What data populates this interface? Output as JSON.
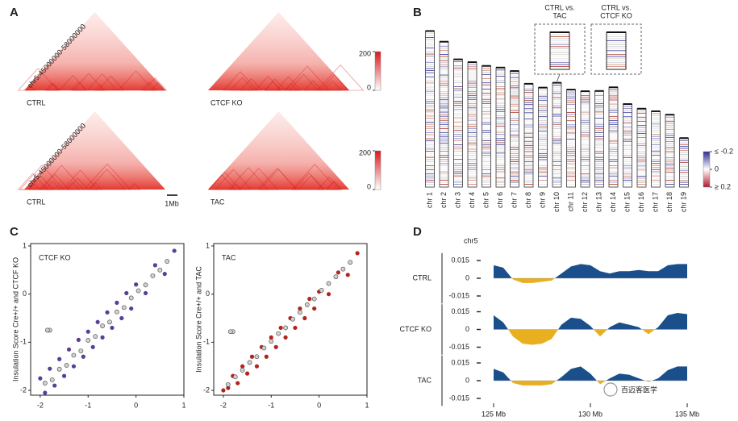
{
  "chart_data": [
    {
      "type": "heatmap",
      "panel": "A",
      "color": "#d7191c",
      "maps": [
        {
          "label": "CTRL",
          "region": "chr5:45000000-58000000"
        },
        {
          "label": "CTCF KO"
        },
        {
          "label": "CTRL",
          "region": "chr5:45000000-58000000"
        },
        {
          "label": "TAC"
        }
      ],
      "colorbars": [
        {
          "ylim": [
            0,
            200
          ],
          "yticks": [
            0,
            200
          ]
        },
        {
          "ylim": [
            0,
            200
          ],
          "yticks": [
            0,
            200
          ]
        }
      ],
      "scale_bar": "1Mb"
    },
    {
      "type": "ideogram",
      "panel": "B",
      "categories": [
        "chr 1",
        "chr 2",
        "chr 3",
        "chr 4",
        "chr 5",
        "chr 6",
        "chr 7",
        "chr 8",
        "chr 9",
        "chr 10",
        "chr 11",
        "chr 12",
        "chr 13",
        "chr 14",
        "chr 15",
        "chr 16",
        "chr 17",
        "chr 18",
        "chr 19"
      ],
      "values": [
        195.5,
        182.1,
        160,
        156.5,
        151.8,
        149.7,
        145.4,
        129.4,
        124.6,
        130.7,
        122.1,
        120.1,
        120.4,
        125,
        104,
        98.2,
        95,
        90.7,
        61.4
      ],
      "insets": [
        {
          "lines": [
            "CTRL vs.",
            "TAC"
          ]
        },
        {
          "lines": [
            "CTRL vs.",
            "CTCF KO"
          ]
        }
      ],
      "colorbar": {
        "ylim": [
          -0.2,
          0.2
        ],
        "yticks": [
          {
            "value": -0.2,
            "label": "≤ -0.2"
          },
          0,
          {
            "value": 0.2,
            "label": "≥ 0.2"
          }
        ],
        "colors": [
          "#2c2c8c",
          "#ffffff",
          "#b2182b"
        ]
      }
    },
    {
      "type": "scatter",
      "panel": "C",
      "label": "CTCF KO",
      "ylabel": "Insulation Score Cre+/+ and CTCF KO",
      "xlim": [
        -2.2,
        1
      ],
      "xticks": [
        -2,
        -1,
        0,
        1
      ],
      "ylim": [
        -2.1,
        1.05
      ],
      "yticks": [
        -2,
        -1,
        0,
        1
      ],
      "series": [
        {
          "color": "#5a3d99",
          "x": [
            -2.0,
            -1.9,
            -1.8,
            -1.7,
            -1.6,
            -1.5,
            -1.4,
            -1.3,
            -1.2,
            -1.1,
            -1.0,
            -0.9,
            -0.8,
            -0.7,
            -0.6,
            -0.5,
            -0.4,
            -0.3,
            -0.2,
            -0.1,
            0,
            0.2,
            0.4,
            0.6,
            0.8
          ],
          "values": [
            -1.75,
            -2.05,
            -1.55,
            -1.9,
            -1.35,
            -1.7,
            -1.15,
            -1.5,
            -0.95,
            -1.3,
            -0.78,
            -1.1,
            -0.58,
            -0.9,
            -0.38,
            -0.7,
            -0.18,
            -0.5,
            0.02,
            -0.3,
            0.2,
            0.02,
            0.6,
            0.42,
            0.9
          ]
        },
        {
          "color": "#d0d0d0",
          "x": [
            -1.9,
            -1.75,
            -1.6,
            -1.45,
            -1.3,
            -1.15,
            -1.0,
            -0.85,
            -0.7,
            -0.55,
            -0.4,
            -0.25,
            -0.1,
            0.05,
            0.2,
            0.35,
            0.5,
            0.65,
            -1.8,
            -1.85
          ],
          "values": [
            -1.85,
            -1.78,
            -1.56,
            -1.48,
            -1.27,
            -1.18,
            -0.96,
            -0.88,
            -0.66,
            -0.58,
            -0.37,
            -0.28,
            -0.08,
            0.07,
            0.19,
            0.38,
            0.5,
            0.68,
            -0.75,
            -0.75
          ]
        }
      ]
    },
    {
      "type": "scatter",
      "label": "TAC",
      "ylabel": "Insulation Score Cre+/+ and TAC",
      "xlim": [
        -2.2,
        1
      ],
      "xticks": [
        -2,
        -1,
        0,
        1
      ],
      "ylim": [
        -2.1,
        1.05
      ],
      "yticks": [
        -2,
        -1,
        0,
        1
      ],
      "series": [
        {
          "color": "#b3241e",
          "x": [
            -2.0,
            -1.9,
            -1.8,
            -1.7,
            -1.6,
            -1.5,
            -1.4,
            -1.3,
            -1.2,
            -1.1,
            -1.0,
            -0.9,
            -0.8,
            -0.7,
            -0.6,
            -0.5,
            -0.4,
            -0.3,
            -0.2,
            -0.1,
            0,
            0.2,
            0.4,
            0.6,
            0.8
          ],
          "values": [
            -2.0,
            -1.95,
            -1.7,
            -1.85,
            -1.5,
            -1.65,
            -1.3,
            -1.5,
            -1.1,
            -1.3,
            -0.9,
            -1.1,
            -0.7,
            -0.9,
            -0.5,
            -0.7,
            -0.3,
            -0.5,
            -0.1,
            -0.3,
            0.05,
            0.0,
            0.45,
            0.4,
            0.85
          ]
        },
        {
          "color": "#d0d0d0",
          "x": [
            -1.9,
            -1.75,
            -1.6,
            -1.45,
            -1.3,
            -1.15,
            -1.0,
            -0.85,
            -0.7,
            -0.55,
            -0.4,
            -0.25,
            -0.1,
            0.05,
            0.2,
            0.35,
            0.5,
            0.65,
            -1.8,
            -1.85
          ],
          "values": [
            -1.88,
            -1.72,
            -1.58,
            -1.42,
            -1.3,
            -1.12,
            -0.98,
            -0.82,
            -0.7,
            -0.52,
            -0.38,
            -0.22,
            -0.1,
            0.08,
            0.22,
            0.36,
            0.52,
            0.66,
            -0.78,
            -0.78
          ]
        }
      ]
    },
    {
      "type": "area",
      "panel": "D",
      "chrom": "chr5",
      "x": [
        125,
        125.5,
        126,
        126.5,
        127,
        127.5,
        128,
        128.5,
        129,
        129.5,
        130,
        130.5,
        131,
        131.5,
        132,
        132.5,
        133,
        133.5,
        134,
        134.5,
        135
      ],
      "xlim": [
        125,
        135
      ],
      "xticks": [
        {
          "value": 125,
          "label": "125 Mb"
        },
        {
          "value": 130,
          "label": "130 Mb"
        },
        {
          "value": 135,
          "label": "135 Mb"
        }
      ],
      "ylim": [
        -0.02,
        0.02
      ],
      "yticks": [
        -0.015,
        0,
        0.015
      ],
      "colors": {
        "positive": "#1a4f8b",
        "negative": "#e8b020"
      },
      "tracks": [
        {
          "name": "CTRL",
          "values": [
            0.011,
            0.009,
            -0.001,
            -0.004,
            -0.004,
            -0.003,
            -0.002,
            0.004,
            0.01,
            0.012,
            0.011,
            0.006,
            0.004,
            0.006,
            0.006,
            0.007,
            0.006,
            0.006,
            0.011,
            0.012,
            0.012
          ]
        },
        {
          "name": "CTCF KO",
          "values": [
            0.012,
            0.006,
            -0.006,
            -0.012,
            -0.013,
            -0.012,
            -0.008,
            0.004,
            0.01,
            0.009,
            0.003,
            -0.006,
            0.002,
            0.006,
            0.004,
            0.002,
            -0.004,
            0.002,
            0.012,
            0.014,
            0.013
          ]
        },
        {
          "name": "TAC",
          "values": [
            0.01,
            0.007,
            -0.002,
            -0.004,
            -0.004,
            -0.004,
            -0.003,
            0.003,
            0.01,
            0.012,
            0.006,
            -0.003,
            0.002,
            0.006,
            0.005,
            0.002,
            -0.001,
            0.002,
            0.009,
            0.012,
            0.012
          ]
        }
      ]
    }
  ],
  "watermark": "百迈客医学"
}
